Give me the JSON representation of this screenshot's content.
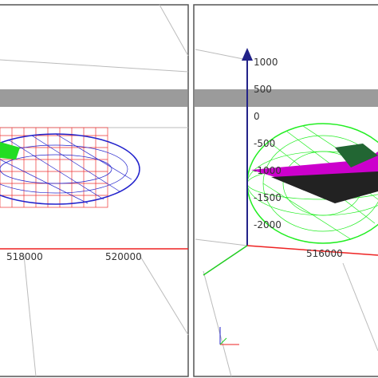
{
  "left_panel": {
    "x_labels": [
      "518000",
      "520000"
    ]
  },
  "right_panel": {
    "z_labels": [
      "1000",
      "500",
      "0",
      "-500",
      "-1000",
      "-1500",
      "-2000"
    ],
    "x_labels": [
      "516000"
    ]
  }
}
